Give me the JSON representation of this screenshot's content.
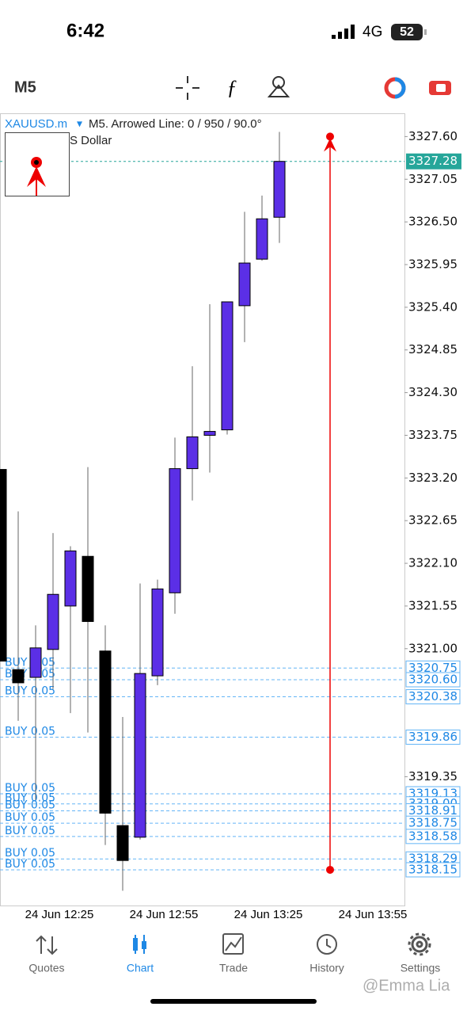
{
  "status_bar": {
    "time": "6:42",
    "network": "4G",
    "battery": "52"
  },
  "toolbar": {
    "timeframe": "M5"
  },
  "chart": {
    "symbol": "XAUUSD.m",
    "info": "M5. Arrowed Line: 0 / 950 / 90.0°",
    "subtitle": "S Dollar",
    "open": [
      3323.31,
      3320.73,
      3320.63,
      3320.99,
      3321.55,
      3322.19,
      3320.97,
      3318.72,
      3318.57,
      3320.65,
      3321.72,
      3323.32,
      3323.75,
      3323.82,
      3325.42,
      3326.02,
      3326.56
    ],
    "high": [
      3323.31,
      3322.77,
      3321.3,
      3322.49,
      3322.32,
      3323.34,
      3321.3,
      3320.12,
      3321.84,
      3321.89,
      3323.72,
      3324.64,
      3325.44,
      3325.47,
      3326.63,
      3326.84,
      3327.66
    ],
    "low": [
      3320.84,
      3320.07,
      3319.05,
      3320.48,
      3320.17,
      3319.92,
      3318.47,
      3317.88,
      3318.54,
      3320.53,
      3321.45,
      3322.91,
      3323.27,
      3323.76,
      3324.95,
      3326.0,
      3326.23
    ],
    "close": [
      3320.84,
      3320.56,
      3321.01,
      3321.7,
      3322.26,
      3321.35,
      3318.88,
      3318.27,
      3320.68,
      3321.77,
      3323.32,
      3323.73,
      3323.8,
      3325.47,
      3325.97,
      3326.54,
      3327.28
    ],
    "ylim": [
      3317.69,
      3327.9
    ],
    "yticks": [
      {
        "value": 3327.6,
        "label": "3327.60"
      },
      {
        "value": 3327.05,
        "label": "3327.05"
      },
      {
        "value": 3326.5,
        "label": "3326.50"
      },
      {
        "value": 3325.95,
        "label": "3325.95"
      },
      {
        "value": 3325.4,
        "label": "3325.40"
      },
      {
        "value": 3324.85,
        "label": "3324.85"
      },
      {
        "value": 3324.3,
        "label": "3324.30"
      },
      {
        "value": 3323.75,
        "label": "3323.75"
      },
      {
        "value": 3323.2,
        "label": "3323.20"
      },
      {
        "value": 3322.65,
        "label": "3322.65"
      },
      {
        "value": 3322.1,
        "label": "3322.10"
      },
      {
        "value": 3321.55,
        "label": "3321.55"
      },
      {
        "value": 3321,
        "label": "3321.00"
      },
      {
        "value": 3319.35,
        "label": "3319.35"
      }
    ],
    "current_price": {
      "value": 3327.28,
      "label": "3327.28"
    },
    "orders": [
      {
        "label": "BUY 0.05",
        "price": {
          "value": 3320.75,
          "label": "3320.75"
        }
      },
      {
        "label": "BUY 0.05",
        "price": {
          "value": 3320.6,
          "label": "3320.60"
        }
      },
      {
        "label": "BUY 0.05",
        "price": {
          "value": 3320.38,
          "label": "3320.38"
        }
      },
      {
        "label": "BUY 0.05",
        "price": {
          "value": 3319.86,
          "label": "3319.86"
        }
      },
      {
        "label": "BUY 0.05",
        "price": {
          "value": 3319.13,
          "label": "3319.13"
        }
      },
      {
        "label": "BUY 0.05",
        "price": {
          "value": 3319,
          "label": "3319.00"
        }
      },
      {
        "label": "BUY 0.05",
        "price": {
          "value": 3318.91,
          "label": "3318.91"
        }
      },
      {
        "label": "BUY 0.05",
        "price": {
          "value": 3318.75,
          "label": "3318.75"
        }
      },
      {
        "label": "BUY 0.05",
        "price": {
          "value": 3318.58,
          "label": "3318.58"
        }
      },
      {
        "label": "BUY 0.05",
        "price": {
          "value": 3318.29,
          "label": "3318.29"
        }
      },
      {
        "label": "BUY 0.05",
        "price": {
          "value": 3318.15,
          "label": "3318.15"
        }
      }
    ],
    "arrow_line": {
      "start": 3327.6,
      "end": 3318.15
    },
    "x_labels": [
      "24 Jun 12:25",
      "24 Jun 12:55",
      "24 Jun 13:25",
      "24 Jun 13:55"
    ]
  },
  "tabs": [
    "Quotes",
    "Chart",
    "Trade",
    "History",
    "Settings"
  ],
  "watermark": "@Emma Lia"
}
